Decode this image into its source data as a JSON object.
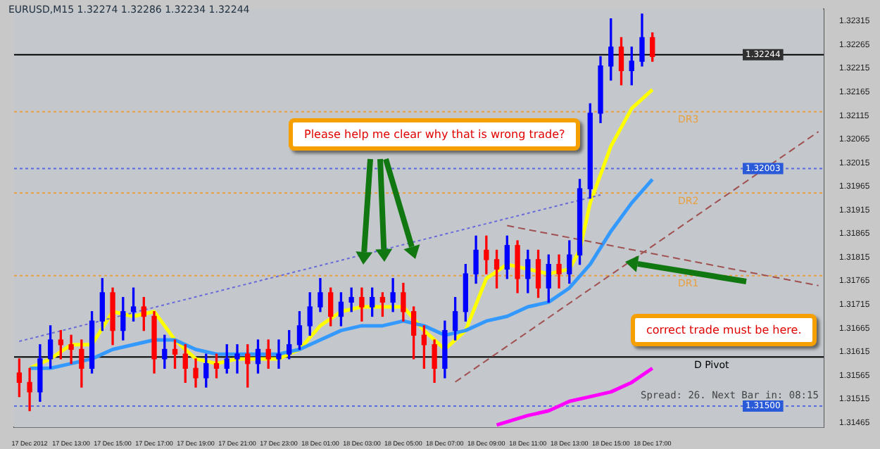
{
  "chart_data": {
    "type": "candlestick",
    "title": "EURUSD,M15 1.32274 1.32286 1.32234 1.32244",
    "categories": [
      null,
      "17 Dec 2012",
      null,
      null,
      null,
      "17 Dec 13:00",
      null,
      null,
      null,
      "17 Dec 15:00",
      null,
      null,
      null,
      "17 Dec 17:00",
      null,
      null,
      null,
      "17 Dec 19:00",
      null,
      null,
      null,
      "17 Dec 21:00",
      null,
      null,
      null,
      "17 Dec 23:00",
      null,
      null,
      null,
      "18 Dec 01:00",
      null,
      null,
      null,
      "18 Dec 03:00",
      null,
      null,
      null,
      "18 Dec 05:00",
      null,
      null,
      null,
      "18 Dec 07:00",
      null,
      null,
      null,
      "18 Dec 09:00",
      null,
      null,
      null,
      "18 Dec 11:00",
      null,
      null,
      null,
      "18 Dec 13:00",
      null,
      null,
      null,
      "18 Dec 15:00",
      null,
      null,
      null,
      "18 Dec 17:00",
      null,
      null,
      null,
      null,
      null,
      null,
      null,
      null,
      null,
      null,
      null,
      null,
      null,
      null,
      null,
      null
    ],
    "ylim": [
      1.31455,
      1.3234
    ],
    "yticks": [
      1.31465,
      1.31515,
      1.31565,
      1.31615,
      1.31665,
      1.31715,
      1.31765,
      1.31815,
      1.31865,
      1.31915,
      1.31965,
      1.32015,
      1.32065,
      1.32115,
      1.32165,
      1.32215,
      1.32265,
      1.32315
    ],
    "grid": false,
    "legend": false,
    "marker": "none",
    "series": [
      {
        "type": "line",
        "color": "#6a6ad8",
        "line_style": "dotted",
        "values": [
          1.31637,
          null,
          null,
          null,
          null,
          null,
          null,
          null,
          null,
          null,
          null,
          null,
          null,
          null,
          null,
          null,
          null,
          null,
          null,
          null,
          null,
          null,
          null,
          null,
          null,
          null,
          null,
          null,
          null,
          null,
          null,
          null,
          null,
          null,
          null,
          null,
          null,
          null,
          null,
          null,
          null,
          null,
          null,
          null,
          null,
          null,
          null,
          null,
          null,
          null,
          null,
          null,
          null,
          null,
          null,
          null,
          1.31947,
          null,
          null,
          null,
          null,
          null,
          null,
          null,
          null,
          null,
          null,
          null,
          null,
          null,
          null,
          null,
          null,
          null,
          null,
          null,
          null,
          null
        ]
      },
      {
        "type": "line",
        "color": "#a05050",
        "line_style": "dashed",
        "values": [
          null,
          null,
          null,
          null,
          null,
          null,
          null,
          null,
          null,
          null,
          null,
          null,
          null,
          null,
          null,
          null,
          null,
          null,
          null,
          null,
          null,
          null,
          null,
          null,
          null,
          null,
          null,
          null,
          null,
          null,
          null,
          null,
          null,
          null,
          null,
          null,
          null,
          null,
          null,
          null,
          null,
          null,
          1.31551,
          null,
          null,
          null,
          null,
          null,
          null,
          null,
          null,
          null,
          null,
          null,
          null,
          null,
          null,
          null,
          null,
          null,
          null,
          null,
          null,
          null,
          null,
          null,
          null,
          null,
          null,
          null,
          null,
          null,
          null,
          null,
          null,
          null,
          null,
          1.32081
        ]
      },
      {
        "type": "line",
        "color": "#a05050",
        "line_style": "dashed",
        "values": [
          null,
          null,
          null,
          null,
          null,
          null,
          null,
          null,
          null,
          null,
          null,
          null,
          null,
          null,
          null,
          null,
          null,
          null,
          null,
          null,
          null,
          null,
          null,
          null,
          null,
          null,
          null,
          null,
          null,
          null,
          null,
          null,
          null,
          null,
          null,
          null,
          null,
          null,
          null,
          null,
          null,
          null,
          null,
          null,
          null,
          null,
          null,
          1.31882,
          null,
          null,
          null,
          null,
          null,
          null,
          null,
          null,
          null,
          null,
          null,
          null,
          null,
          null,
          null,
          null,
          null,
          null,
          null,
          null,
          null,
          null,
          null,
          null,
          null,
          null,
          null,
          null,
          null,
          1.31755
        ]
      },
      {
        "type": "line",
        "color": "#ff00ff",
        "line_style": "solid",
        "values": [
          null,
          null,
          null,
          null,
          null,
          null,
          null,
          null,
          null,
          null,
          null,
          null,
          null,
          null,
          null,
          null,
          null,
          null,
          null,
          null,
          null,
          null,
          null,
          null,
          null,
          null,
          null,
          null,
          null,
          null,
          null,
          null,
          null,
          null,
          null,
          null,
          null,
          null,
          null,
          null,
          null,
          null,
          null,
          null,
          null,
          null,
          1.3146,
          null,
          null,
          1.3148,
          null,
          1.3149,
          null,
          1.3151,
          null,
          1.3152,
          null,
          1.3153,
          null,
          1.3155,
          null,
          1.3158,
          null,
          null,
          null,
          null,
          null,
          null,
          null,
          null,
          null,
          null,
          null,
          null,
          null,
          null,
          null,
          null
        ]
      },
      {
        "type": "line",
        "color": "#3399ff",
        "line_style": "solid",
        "values": [
          null,
          1.3158,
          null,
          1.3158,
          null,
          1.3159,
          null,
          1.316,
          null,
          1.3162,
          null,
          1.3163,
          null,
          1.3164,
          null,
          1.3164,
          null,
          1.3162,
          null,
          1.3161,
          null,
          1.3161,
          null,
          1.3161,
          null,
          1.3161,
          null,
          1.3162,
          null,
          1.3164,
          null,
          1.3166,
          null,
          1.3167,
          null,
          1.3167,
          null,
          1.3168,
          null,
          1.3167,
          null,
          1.3165,
          null,
          1.3166,
          null,
          1.3168,
          null,
          1.3169,
          null,
          1.3171,
          null,
          1.3172,
          null,
          1.3175,
          null,
          1.318,
          null,
          1.3187,
          null,
          1.3193,
          null,
          1.3198,
          null,
          null,
          null,
          null,
          null,
          null,
          null,
          null,
          null,
          null,
          null,
          null,
          null,
          null,
          null,
          null
        ]
      },
      {
        "type": "line",
        "color": "#ffff00",
        "line_style": "solid",
        "values": [
          null,
          1.3158,
          null,
          1.316,
          null,
          1.3163,
          null,
          1.3163,
          null,
          1.317,
          null,
          1.3169,
          null,
          1.317,
          null,
          1.3164,
          null,
          1.316,
          null,
          1.3159,
          null,
          1.316,
          null,
          1.316,
          null,
          1.316,
          null,
          1.3162,
          null,
          1.3167,
          null,
          1.317,
          null,
          1.3171,
          null,
          1.3171,
          null,
          1.3171,
          null,
          1.3166,
          null,
          1.3162,
          null,
          1.3166,
          null,
          1.3177,
          null,
          1.318,
          null,
          1.3179,
          null,
          1.3178,
          null,
          1.3179,
          1.3183,
          1.3193,
          null,
          1.3205,
          null,
          1.3213,
          null,
          1.3217,
          null,
          null,
          null,
          null,
          null,
          null,
          null,
          null,
          null,
          null,
          null,
          null,
          null,
          null,
          null,
          null
        ]
      },
      {
        "ohlc": [
          [
            1.3157,
            1.316,
            1.3152,
            1.3155
          ],
          [
            1.3155,
            1.3158,
            1.3149,
            1.3153
          ],
          [
            1.3153,
            1.3163,
            1.3151,
            1.316
          ],
          [
            1.316,
            1.3167,
            1.3158,
            1.3164
          ],
          [
            1.3164,
            1.3166,
            1.316,
            1.3163
          ],
          [
            1.3163,
            1.3165,
            1.3159,
            1.3162
          ],
          [
            1.3162,
            1.3164,
            1.3154,
            1.3158
          ],
          [
            1.3158,
            1.317,
            1.3157,
            1.3168
          ],
          [
            1.3168,
            1.3177,
            1.3166,
            1.3174
          ],
          [
            1.3174,
            1.3175,
            1.3163,
            1.3166
          ],
          [
            1.3166,
            1.3173,
            1.3164,
            1.317
          ],
          [
            1.317,
            1.3175,
            1.3168,
            1.3171
          ],
          [
            1.3171,
            1.3173,
            1.3166,
            1.3169
          ],
          [
            1.3169,
            1.317,
            1.3157,
            1.316
          ],
          [
            1.316,
            1.3165,
            1.3158,
            1.3162
          ],
          [
            1.3162,
            1.3164,
            1.3158,
            1.3161
          ],
          [
            1.3161,
            1.3163,
            1.3155,
            1.3158
          ],
          [
            1.3158,
            1.316,
            1.3154,
            1.3156
          ],
          [
            1.3156,
            1.3161,
            1.3154,
            1.3159
          ],
          [
            1.3159,
            1.3161,
            1.3156,
            1.3158
          ],
          [
            1.3158,
            1.3163,
            1.3157,
            1.316
          ],
          [
            1.316,
            1.3163,
            1.3157,
            1.3161
          ],
          [
            1.3161,
            1.3163,
            1.3154,
            1.3159
          ],
          [
            1.3159,
            1.3164,
            1.3157,
            1.3162
          ],
          [
            1.3162,
            1.3164,
            1.3158,
            1.316
          ],
          [
            1.316,
            1.3164,
            1.3158,
            1.3161
          ],
          [
            1.3161,
            1.3166,
            1.316,
            1.3163
          ],
          [
            1.3163,
            1.317,
            1.3162,
            1.3167
          ],
          [
            1.3167,
            1.3174,
            1.3165,
            1.3171
          ],
          [
            1.3171,
            1.3177,
            1.317,
            1.3174
          ],
          [
            1.3174,
            1.3175,
            1.3167,
            1.3169
          ],
          [
            1.3169,
            1.3174,
            1.3167,
            1.3172
          ],
          [
            1.3172,
            1.3175,
            1.317,
            1.3173
          ],
          [
            1.3173,
            1.3175,
            1.3168,
            1.3171
          ],
          [
            1.3171,
            1.3175,
            1.3169,
            1.3173
          ],
          [
            1.3173,
            1.3174,
            1.3169,
            1.3172
          ],
          [
            1.3172,
            1.3177,
            1.317,
            1.3174
          ],
          [
            1.3174,
            1.3176,
            1.3168,
            1.317
          ],
          [
            1.317,
            1.3171,
            1.316,
            1.3165
          ],
          [
            1.3165,
            1.3167,
            1.3158,
            1.3163
          ],
          [
            1.3163,
            1.3164,
            1.3155,
            1.3158
          ],
          [
            1.3158,
            1.3168,
            1.3156,
            1.3166
          ],
          [
            1.3166,
            1.3173,
            1.3164,
            1.317
          ],
          [
            1.317,
            1.318,
            1.3168,
            1.3178
          ],
          [
            1.3178,
            1.3186,
            1.3176,
            1.3183
          ],
          [
            1.3183,
            1.3186,
            1.3178,
            1.3181
          ],
          [
            1.3181,
            1.3183,
            1.3175,
            1.3179
          ],
          [
            1.3179,
            1.3186,
            1.3177,
            1.3184
          ],
          [
            1.3184,
            1.3185,
            1.3174,
            1.3177
          ],
          [
            1.3177,
            1.3183,
            1.3174,
            1.3181
          ],
          [
            1.3181,
            1.3183,
            1.3173,
            1.3175
          ],
          [
            1.3175,
            1.3182,
            1.3172,
            1.318
          ],
          [
            1.318,
            1.3182,
            1.3175,
            1.3178
          ],
          [
            1.3178,
            1.3185,
            1.3176,
            1.3182
          ],
          [
            1.3182,
            1.3198,
            1.318,
            1.3196
          ],
          [
            1.3196,
            1.3214,
            1.3194,
            1.3212
          ],
          [
            1.3212,
            1.3224,
            1.321,
            1.3222
          ],
          [
            1.3222,
            1.3232,
            1.3219,
            1.3226
          ],
          [
            1.3226,
            1.3228,
            1.3218,
            1.3221
          ],
          [
            1.3221,
            1.3226,
            1.3218,
            1.3223
          ],
          [
            1.3223,
            1.3233,
            1.3222,
            1.3228
          ],
          [
            1.3228,
            1.3229,
            1.3223,
            1.3224
          ],
          null,
          null,
          null,
          null,
          null,
          null,
          null,
          null,
          null,
          null,
          null,
          null,
          null,
          null,
          null,
          null
        ],
        "colors": [
          "#ff0000",
          "#ff0000",
          "#0000ff",
          "#0000ff",
          "#ff0000",
          "#ff0000",
          "#ff0000",
          "#0000ff",
          "#0000ff",
          "#ff0000",
          "#0000ff",
          "#0000ff",
          "#ff0000",
          "#ff0000",
          "#0000ff",
          "#ff0000",
          "#ff0000",
          "#ff0000",
          "#0000ff",
          "#ff0000",
          "#0000ff",
          "#0000ff",
          "#ff0000",
          "#0000ff",
          "#ff0000",
          "#0000ff",
          "#0000ff",
          "#0000ff",
          "#0000ff",
          "#0000ff",
          "#ff0000",
          "#0000ff",
          "#0000ff",
          "#ff0000",
          "#0000ff",
          "#ff0000",
          "#0000ff",
          "#ff0000",
          "#ff0000",
          "#ff0000",
          "#ff0000",
          "#0000ff",
          "#0000ff",
          "#0000ff",
          "#0000ff",
          "#ff0000",
          "#ff0000",
          "#0000ff",
          "#ff0000",
          "#0000ff",
          "#ff0000",
          "#0000ff",
          "#ff0000",
          "#0000ff",
          "#0000ff",
          "#0000ff",
          "#0000ff",
          "#0000ff",
          "#ff0000",
          "#0000ff",
          "#0000ff",
          "#ff0000",
          null,
          null,
          null,
          null,
          null,
          null,
          null,
          null,
          null,
          null,
          null,
          null,
          null,
          null,
          null,
          null
        ]
      }
    ],
    "ref_lines": [
      {
        "axis": "y",
        "value": 1.32244,
        "label": "1.32244",
        "color": "#000000",
        "line_style": "solid"
      },
      {
        "axis": "y",
        "value": 1.32123,
        "label": "DR3",
        "color": "#e8a040",
        "line_style": "dotted"
      },
      {
        "axis": "y",
        "value": 1.32003,
        "label": "1.32003",
        "color": "#5a6ae0",
        "line_style": "dotted"
      },
      {
        "axis": "y",
        "value": 1.31951,
        "label": "DR2",
        "color": "#e8a040",
        "line_style": "dotted"
      },
      {
        "axis": "y",
        "value": 1.31776,
        "label": "DR1",
        "color": "#e8a040",
        "line_style": "dotted"
      },
      {
        "axis": "y",
        "value": 1.31604,
        "label": "D Pivot",
        "color": "#000000",
        "line_style": "solid"
      },
      {
        "axis": "y",
        "value": 1.315,
        "label": "1.31500",
        "color": "#5a6ae0",
        "line_style": "dotted"
      }
    ],
    "annotations": [
      "Please help me clear why that is wrong trade?",
      "correct trade must be here.",
      "Spread: 26. Next Bar in: 08:15"
    ]
  }
}
